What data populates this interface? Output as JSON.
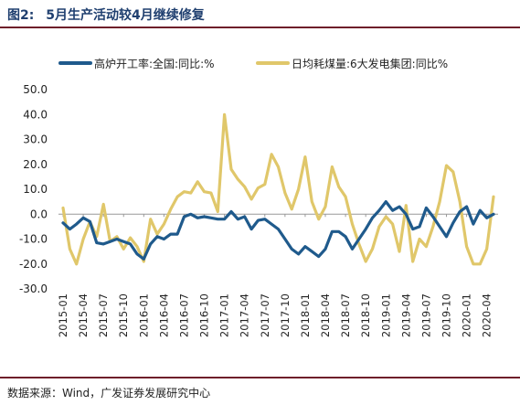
{
  "figure": {
    "number": "图2:",
    "title": "5月生产活动较4月继续修复",
    "source": "数据来源：Wind，广发证券发展研究中心"
  },
  "chart_data": {
    "type": "line",
    "ylim": [
      -30,
      50
    ],
    "y_ticks": [
      "50.0",
      "40.0",
      "30.0",
      "20.0",
      "10.0",
      "0.0",
      "-10.0",
      "-20.0",
      "-30.0"
    ],
    "y_tick_values": [
      50,
      40,
      30,
      20,
      10,
      0,
      -10,
      -20,
      -30
    ],
    "x_tick_labels": [
      "2015-01",
      "2015-04",
      "2015-07",
      "2015-10",
      "2016-01",
      "2016-04",
      "2016-07",
      "2016-10",
      "2017-01",
      "2017-04",
      "2017-07",
      "2017-10",
      "2018-01",
      "2018-04",
      "2018-07",
      "2018-10",
      "2019-01",
      "2019-04",
      "2019-07",
      "2019-10",
      "2020-01",
      "2020-04"
    ],
    "x_start": "2015-01",
    "legend_position": "top",
    "series": [
      {
        "name": "高炉开工率:全国:同比:%",
        "color": "#1f5a8c",
        "values": [
          -3.5,
          -6,
          -4,
          -1.5,
          -3,
          -11.5,
          -12,
          -11,
          -10,
          -11,
          -12,
          -16,
          -18,
          -12,
          -9,
          -10,
          -8,
          -8,
          -1,
          0,
          -1.5,
          -1,
          -1.5,
          -2,
          -2,
          1,
          -2,
          -1,
          -6,
          -2.5,
          -2,
          -4,
          -6,
          -10,
          -14,
          -16,
          -13,
          -15,
          -17,
          -14,
          -7,
          -7,
          -9,
          -14,
          -10,
          -6,
          -1.5,
          1.5,
          5,
          1.5,
          3,
          0,
          -6,
          -5,
          2.5,
          -1,
          -5,
          -9,
          -3.5,
          1,
          3,
          -4,
          1.5,
          -1.5,
          0
        ]
      },
      {
        "name": "日均耗煤量:6大发电集团:同比%",
        "color": "#e0c76a",
        "values": [
          2.5,
          -14,
          -20,
          -10,
          -3,
          -9,
          4,
          -11,
          -9,
          -14,
          -9.5,
          -13,
          -19,
          -2,
          -8,
          -4,
          2,
          7,
          9,
          8.5,
          13,
          9,
          8.5,
          1,
          40,
          18,
          14,
          11,
          6,
          10.5,
          12,
          24,
          19,
          8.5,
          2,
          10,
          23,
          5,
          -2,
          3,
          19,
          11,
          7,
          -4,
          -12,
          -19,
          -14,
          -5,
          -1,
          -4,
          -15,
          3.5,
          -19,
          -10,
          -13,
          -5,
          5,
          19.5,
          17,
          5,
          -13,
          -20,
          -20,
          -14,
          7
        ]
      }
    ]
  }
}
